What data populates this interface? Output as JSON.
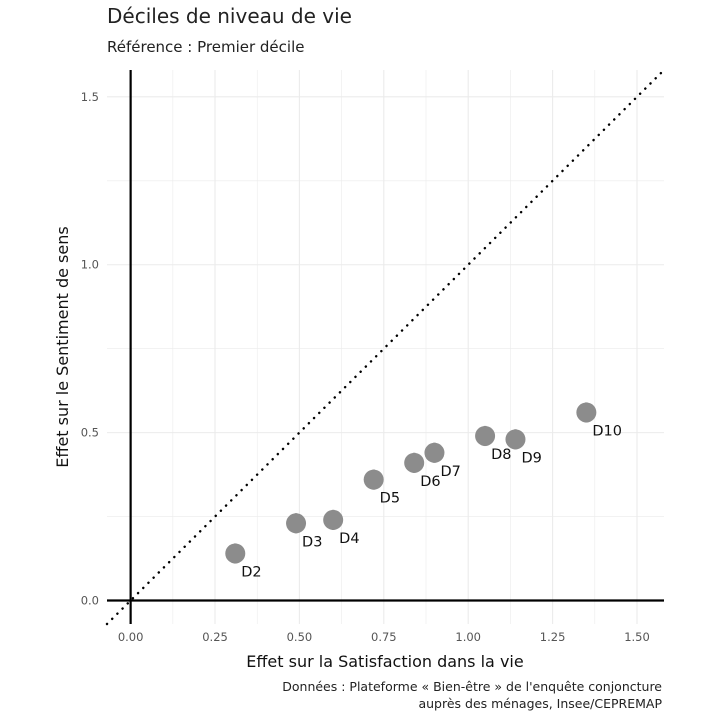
{
  "chart_data": {
    "type": "scatter",
    "title": "Déciles de niveau de vie",
    "subtitle": "Référence : Premier décile",
    "xlabel": "Effet sur la Satisfaction dans la vie",
    "ylabel": "Effet sur le Sentiment de sens",
    "caption": [
      "Données : Plateforme « Bien-être » de l'enquête conjoncture",
      "auprès des ménages, Insee/CEPREMAP"
    ],
    "xlim": [
      -0.07,
      1.58
    ],
    "ylim": [
      -0.07,
      1.58
    ],
    "x_ticks": [
      0.0,
      0.25,
      0.5,
      0.75,
      1.0,
      1.25,
      1.5
    ],
    "x_tick_labels": [
      "0.00",
      "0.25",
      "0.50",
      "0.75",
      "1.00",
      "1.25",
      "1.50"
    ],
    "y_ticks": [
      0.0,
      0.5,
      1.0,
      1.5
    ],
    "y_tick_labels": [
      "0.0",
      "0.5",
      "1.0",
      "1.5"
    ],
    "grid": true,
    "reference_line": "y = x",
    "colors": {
      "points": "#8c8c8c",
      "zero_lines": "#000000",
      "grid": "#ebebeb",
      "diagonal": "#000000"
    },
    "points": [
      {
        "label": "D2",
        "x": 0.31,
        "y": 0.14,
        "x_err": 0.02,
        "y_err": 0.03
      },
      {
        "label": "D3",
        "x": 0.49,
        "y": 0.23,
        "x_err": 0.02,
        "y_err": 0.03
      },
      {
        "label": "D4",
        "x": 0.6,
        "y": 0.24,
        "x_err": 0.02,
        "y_err": 0.03
      },
      {
        "label": "D5",
        "x": 0.72,
        "y": 0.36,
        "x_err": 0.02,
        "y_err": 0.03
      },
      {
        "label": "D6",
        "x": 0.84,
        "y": 0.41,
        "x_err": 0.02,
        "y_err": 0.03
      },
      {
        "label": "D7",
        "x": 0.9,
        "y": 0.44,
        "x_err": 0.02,
        "y_err": 0.03
      },
      {
        "label": "D8",
        "x": 1.05,
        "y": 0.49,
        "x_err": 0.02,
        "y_err": 0.03
      },
      {
        "label": "D9",
        "x": 1.14,
        "y": 0.48,
        "x_err": 0.02,
        "y_err": 0.03
      },
      {
        "label": "D10",
        "x": 1.35,
        "y": 0.56,
        "x_err": 0.02,
        "y_err": 0.03
      }
    ]
  }
}
